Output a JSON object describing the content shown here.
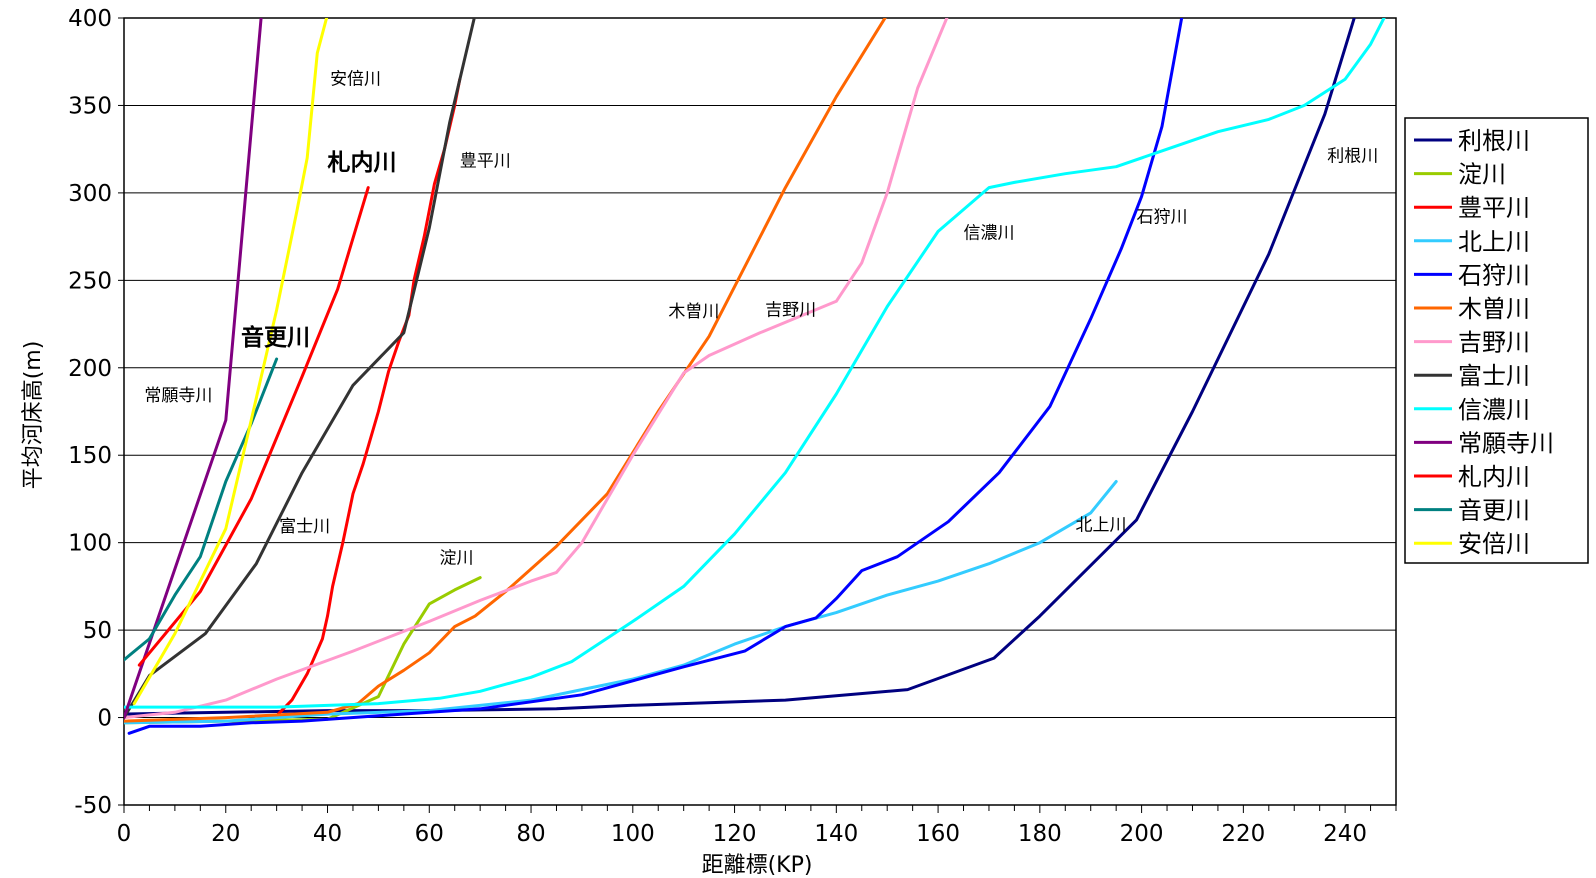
{
  "chart_data": {
    "type": "line",
    "title": "",
    "xlabel": "距離標(KP)",
    "ylabel": "平均河床高(m)",
    "xlim": [
      0,
      250
    ],
    "ylim": [
      -50,
      400
    ],
    "x_ticks": [
      "0",
      "20",
      "40",
      "60",
      "80",
      "100",
      "120",
      "140",
      "160",
      "180",
      "200",
      "220",
      "240"
    ],
    "y_ticks": [
      "-50",
      "0",
      "50",
      "100",
      "150",
      "200",
      "250",
      "300",
      "350",
      "400"
    ],
    "grid": "horizontal",
    "legend_position": "right",
    "series": [
      {
        "name": "利根川",
        "color": "#000080",
        "points": [
          [
            0,
            2
          ],
          [
            20,
            3
          ],
          [
            40,
            4
          ],
          [
            60,
            4
          ],
          [
            85,
            5
          ],
          [
            100,
            7
          ],
          [
            130,
            10
          ],
          [
            154,
            16
          ],
          [
            171,
            34
          ],
          [
            180,
            58
          ],
          [
            199,
            113
          ],
          [
            210,
            175
          ],
          [
            225,
            265
          ],
          [
            236,
            345
          ],
          [
            242,
            402
          ]
        ]
      },
      {
        "name": "淀川",
        "color": "#99CC00",
        "points": [
          [
            0,
            -3
          ],
          [
            20,
            -2
          ],
          [
            40,
            -1
          ],
          [
            50,
            12
          ],
          [
            55,
            42
          ],
          [
            60,
            65
          ],
          [
            65,
            73
          ],
          [
            70,
            80
          ]
        ]
      },
      {
        "name": "豊平川",
        "color": "#FF0000",
        "points": [
          [
            30,
            1
          ],
          [
            33,
            10
          ],
          [
            36,
            25
          ],
          [
            39,
            45
          ],
          [
            40,
            58
          ],
          [
            41,
            75
          ],
          [
            43,
            100
          ],
          [
            45,
            128
          ],
          [
            47,
            145
          ],
          [
            48,
            155
          ],
          [
            50,
            175
          ],
          [
            52,
            198
          ],
          [
            54,
            215
          ],
          [
            56,
            230
          ],
          [
            57,
            250
          ],
          [
            59,
            275
          ],
          [
            61,
            305
          ],
          [
            63,
            325
          ],
          [
            65,
            350
          ],
          [
            66,
            365
          ]
        ]
      },
      {
        "name": "北上川",
        "color": "#33CCFF",
        "points": [
          [
            0,
            -3
          ],
          [
            20,
            -2
          ],
          [
            40,
            2
          ],
          [
            60,
            4
          ],
          [
            80,
            10
          ],
          [
            90,
            16
          ],
          [
            100,
            22
          ],
          [
            110,
            30
          ],
          [
            120,
            42
          ],
          [
            130,
            52
          ],
          [
            140,
            60
          ],
          [
            150,
            70
          ],
          [
            160,
            78
          ],
          [
            170,
            88
          ],
          [
            180,
            100
          ],
          [
            190,
            117
          ],
          [
            195,
            135
          ]
        ]
      },
      {
        "name": "石狩川",
        "color": "#0000FF",
        "points": [
          [
            1,
            -9
          ],
          [
            5,
            -5
          ],
          [
            15,
            -5
          ],
          [
            25,
            -3
          ],
          [
            35,
            -2
          ],
          [
            50,
            1
          ],
          [
            70,
            5
          ],
          [
            90,
            13
          ],
          [
            110,
            29
          ],
          [
            122,
            38
          ],
          [
            130,
            52
          ],
          [
            136,
            57
          ],
          [
            140,
            68
          ],
          [
            145,
            84
          ],
          [
            152,
            92
          ],
          [
            162,
            112
          ],
          [
            172,
            140
          ],
          [
            182,
            178
          ],
          [
            190,
            228
          ],
          [
            196,
            268
          ],
          [
            200,
            298
          ],
          [
            204,
            338
          ],
          [
            208,
            402
          ]
        ]
      },
      {
        "name": "木曽川",
        "color": "#FF6600",
        "points": [
          [
            0,
            -2
          ],
          [
            20,
            0
          ],
          [
            40,
            3
          ],
          [
            46,
            8
          ],
          [
            50,
            18
          ],
          [
            55,
            27
          ],
          [
            60,
            37
          ],
          [
            65,
            52
          ],
          [
            69,
            58
          ],
          [
            75,
            72
          ],
          [
            85,
            98
          ],
          [
            95,
            128
          ],
          [
            105,
            175
          ],
          [
            115,
            218
          ],
          [
            130,
            303
          ],
          [
            140,
            355
          ],
          [
            150,
            402
          ]
        ]
      },
      {
        "name": "吉野川",
        "color": "#FF99CC",
        "points": [
          [
            0,
            0
          ],
          [
            10,
            3
          ],
          [
            20,
            10
          ],
          [
            30,
            22
          ],
          [
            45,
            38
          ],
          [
            60,
            55
          ],
          [
            70,
            67
          ],
          [
            80,
            78
          ],
          [
            85,
            83
          ],
          [
            90,
            100
          ],
          [
            100,
            150
          ],
          [
            110,
            197
          ],
          [
            115,
            207
          ],
          [
            125,
            220
          ],
          [
            140,
            238
          ],
          [
            145,
            260
          ],
          [
            150,
            300
          ],
          [
            156,
            360
          ],
          [
            162,
            402
          ]
        ]
      },
      {
        "name": "富士川",
        "color": "#333333",
        "points": [
          [
            0,
            0
          ],
          [
            5,
            24
          ],
          [
            16,
            48
          ],
          [
            26,
            88
          ],
          [
            35,
            140
          ],
          [
            45,
            190
          ],
          [
            55,
            220
          ],
          [
            60,
            280
          ],
          [
            64,
            340
          ],
          [
            69,
            402
          ]
        ]
      },
      {
        "name": "信濃川",
        "color": "#00FFFF",
        "points": [
          [
            0,
            6
          ],
          [
            30,
            6
          ],
          [
            50,
            8
          ],
          [
            62,
            11
          ],
          [
            70,
            15
          ],
          [
            80,
            23
          ],
          [
            88,
            32
          ],
          [
            100,
            55
          ],
          [
            110,
            75
          ],
          [
            120,
            105
          ],
          [
            130,
            140
          ],
          [
            140,
            185
          ],
          [
            150,
            235
          ],
          [
            160,
            278
          ],
          [
            170,
            303
          ],
          [
            175,
            306
          ],
          [
            185,
            311
          ],
          [
            195,
            315
          ],
          [
            205,
            325
          ],
          [
            215,
            335
          ],
          [
            225,
            342
          ],
          [
            232,
            350
          ],
          [
            240,
            365
          ],
          [
            245,
            385
          ],
          [
            248,
            402
          ]
        ]
      },
      {
        "name": "常願寺川",
        "color": "#800080",
        "points": [
          [
            0,
            0
          ],
          [
            20,
            170
          ],
          [
            27,
            402
          ]
        ]
      },
      {
        "name": "札内川",
        "color": "#FF0000",
        "points": [
          [
            3,
            30
          ],
          [
            15,
            72
          ],
          [
            25,
            125
          ],
          [
            35,
            195
          ],
          [
            42,
            245
          ],
          [
            48,
            303
          ]
        ]
      },
      {
        "name": "音更川",
        "color": "#008080",
        "points": [
          [
            0,
            33
          ],
          [
            5,
            45
          ],
          [
            10,
            70
          ],
          [
            15,
            92
          ],
          [
            20,
            135
          ],
          [
            25,
            168
          ],
          [
            30,
            205
          ]
        ]
      },
      {
        "name": "安倍川",
        "color": "#FFFF00",
        "points": [
          [
            2,
            8
          ],
          [
            10,
            48
          ],
          [
            20,
            108
          ],
          [
            25,
            170
          ],
          [
            30,
            233
          ],
          [
            34,
            290
          ],
          [
            36,
            320
          ],
          [
            38,
            380
          ],
          [
            40,
            402
          ]
        ]
      }
    ],
    "annotations": [
      {
        "text": "安倍川",
        "x": 40.5,
        "y": 362,
        "bold": false
      },
      {
        "text": "札内川",
        "x": 40,
        "y": 313,
        "bold": true
      },
      {
        "text": "豊平川",
        "x": 66,
        "y": 315,
        "bold": false
      },
      {
        "text": "音更川",
        "x": 23,
        "y": 213,
        "bold": true
      },
      {
        "text": "常願寺川",
        "x": 4,
        "y": 181,
        "bold": false
      },
      {
        "text": "富士川",
        "x": 30.5,
        "y": 106,
        "bold": false
      },
      {
        "text": "淀川",
        "x": 62,
        "y": 88,
        "bold": false
      },
      {
        "text": "木曽川",
        "x": 107,
        "y": 229,
        "bold": false
      },
      {
        "text": "吉野川",
        "x": 126,
        "y": 230,
        "bold": false
      },
      {
        "text": "信濃川",
        "x": 165,
        "y": 274,
        "bold": false
      },
      {
        "text": "石狩川",
        "x": 199,
        "y": 283,
        "bold": false
      },
      {
        "text": "北上川",
        "x": 187,
        "y": 107,
        "bold": false
      },
      {
        "text": "利根川",
        "x": 236.5,
        "y": 318,
        "bold": false
      }
    ]
  }
}
